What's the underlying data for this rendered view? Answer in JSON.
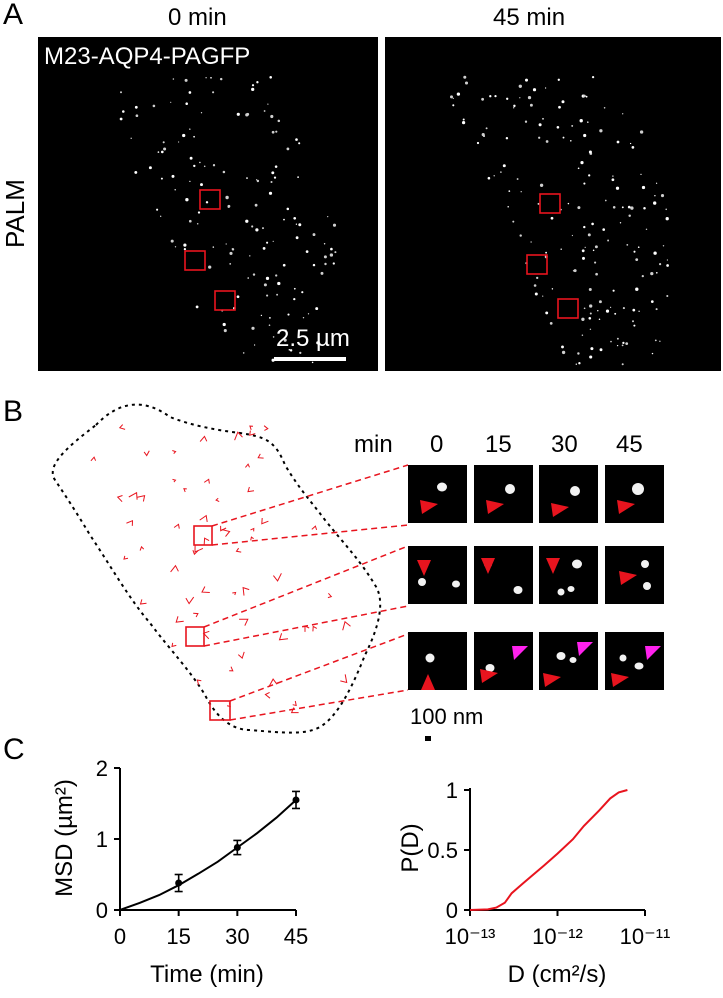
{
  "panels": {
    "a": {
      "letter": "A",
      "time_left": "0 min",
      "time_right": "45 min",
      "row_label": "PALM",
      "construct_label": "M23-AQP4-PAGFP",
      "scale_bar_label": "2.5 µm"
    },
    "b": {
      "letter": "B",
      "min_label": "min",
      "time_labels": [
        "0",
        "15",
        "30",
        "45"
      ],
      "scale_label": "100 nm",
      "arrow_colors": {
        "red": "#e8141e",
        "magenta": "#ff22ee"
      }
    },
    "c": {
      "letter": "C"
    }
  },
  "chart_data": [
    {
      "type": "line",
      "xlabel": "Time (min)",
      "ylabel": "MSD (µm²)",
      "xlim": [
        0,
        45
      ],
      "ylim": [
        0,
        2
      ],
      "xticks": [
        "0",
        "15",
        "30",
        "45"
      ],
      "yticks": [
        "0",
        "1",
        "2"
      ],
      "points": {
        "x": [
          15,
          30,
          45
        ],
        "y": [
          0.38,
          0.88,
          1.55
        ],
        "yerr": [
          0.12,
          0.1,
          0.12
        ]
      },
      "fit_curve": {
        "x": [
          0,
          5,
          10,
          15,
          20,
          25,
          30,
          35,
          40,
          45
        ],
        "y": [
          0,
          0.1,
          0.21,
          0.35,
          0.51,
          0.68,
          0.88,
          1.08,
          1.3,
          1.55
        ]
      },
      "color": "#000000"
    },
    {
      "type": "line",
      "xlabel": "D (cm²/s)",
      "ylabel": "P(D)",
      "x_scale": "log",
      "xlim": [
        1e-13,
        1e-11
      ],
      "ylim": [
        0,
        1
      ],
      "xticks": [
        "10⁻¹³",
        "10⁻¹²",
        "10⁻¹¹"
      ],
      "yticks": [
        "0",
        "0.5",
        "1"
      ],
      "x": [
        1e-13,
        1.6e-13,
        2e-13,
        2.5e-13,
        3e-13,
        4e-13,
        5e-13,
        7e-13,
        1e-12,
        1.5e-12,
        2e-12,
        3e-12,
        4e-12,
        5e-12,
        6.3e-12
      ],
      "y": [
        0,
        0.005,
        0.02,
        0.06,
        0.14,
        0.22,
        0.28,
        0.37,
        0.47,
        0.59,
        0.7,
        0.83,
        0.93,
        0.98,
        1.0
      ],
      "color": "#e8141e"
    }
  ]
}
